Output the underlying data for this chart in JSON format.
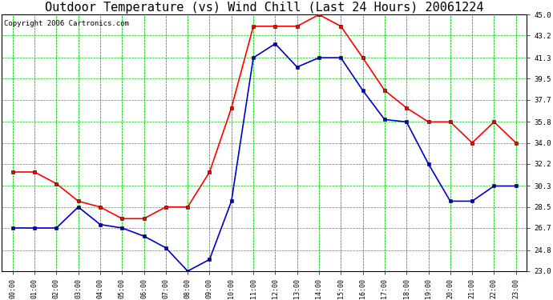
{
  "title": "Outdoor Temperature (vs) Wind Chill (Last 24 Hours) 20061224",
  "copyright": "Copyright 2006 Cartronics.com",
  "hours": [
    "00:00",
    "01:00",
    "02:00",
    "03:00",
    "04:00",
    "05:00",
    "06:00",
    "07:00",
    "08:00",
    "09:00",
    "10:00",
    "11:00",
    "12:00",
    "13:00",
    "14:00",
    "15:00",
    "16:00",
    "17:00",
    "18:00",
    "19:00",
    "20:00",
    "21:00",
    "22:00",
    "23:00"
  ],
  "temp": [
    31.5,
    31.5,
    30.5,
    29.0,
    28.5,
    27.5,
    27.5,
    28.5,
    28.5,
    31.5,
    37.0,
    44.0,
    44.0,
    44.0,
    45.0,
    44.0,
    41.3,
    38.5,
    37.0,
    35.8,
    35.8,
    34.0,
    35.8,
    34.0
  ],
  "wind_chill": [
    26.7,
    26.7,
    26.7,
    28.5,
    27.0,
    26.7,
    26.0,
    25.0,
    23.0,
    24.0,
    29.0,
    41.3,
    42.5,
    40.5,
    41.3,
    41.3,
    38.5,
    36.0,
    35.8,
    32.2,
    29.0,
    29.0,
    30.3,
    30.3
  ],
  "temp_color": "#ff0000",
  "wind_chill_color": "#0000cc",
  "grid_color": "#00cc00",
  "background_color": "#ffffff",
  "ylim_min": 23.0,
  "ylim_max": 45.0,
  "yticks": [
    23.0,
    24.8,
    26.7,
    28.5,
    30.3,
    32.2,
    34.0,
    35.8,
    37.7,
    39.5,
    41.3,
    43.2,
    45.0
  ],
  "title_fontsize": 11,
  "copyright_fontsize": 6.5
}
